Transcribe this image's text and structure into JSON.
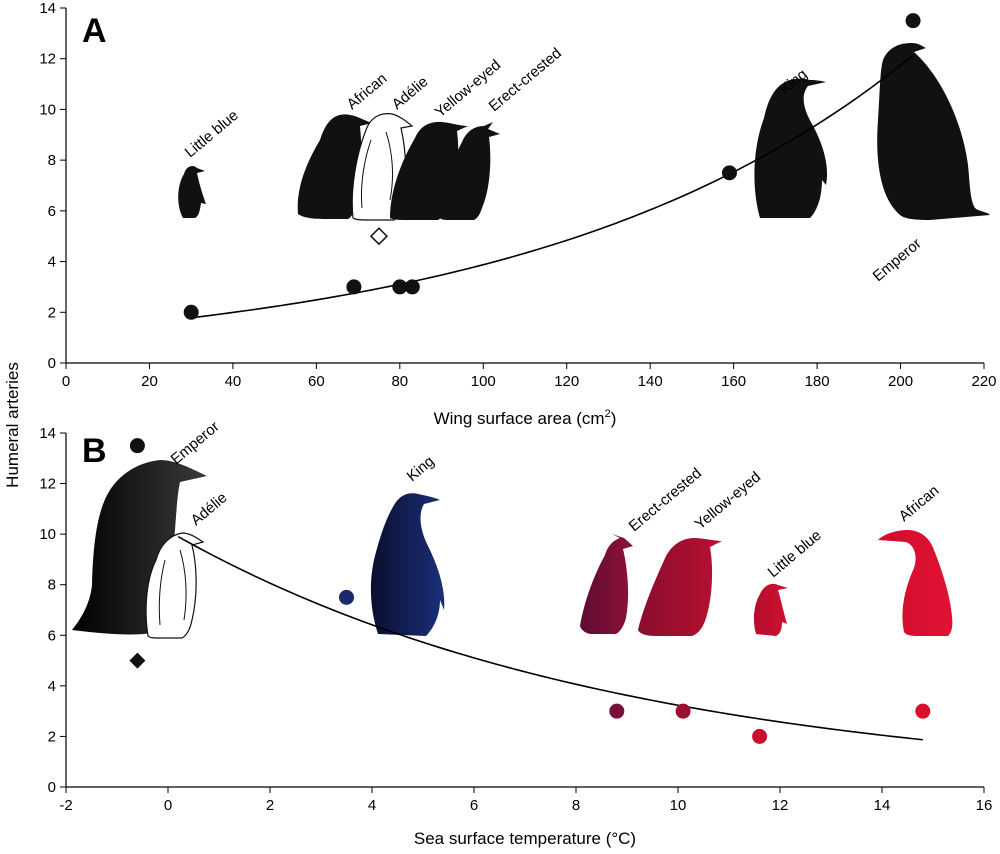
{
  "ylabel_shared": "Humeral arteries",
  "chart_data": [
    {
      "panel": "A",
      "type": "scatter",
      "xlabel": "Wing surface area (cm",
      "xlabel_sup": "2",
      "xlabel_close": ")",
      "ylabel": "Humeral arteries",
      "xlim": [
        0,
        220
      ],
      "ylim": [
        0,
        14
      ],
      "xticks": [
        0,
        20,
        40,
        60,
        80,
        100,
        120,
        140,
        160,
        180,
        200,
        220
      ],
      "yticks": [
        0,
        2,
        4,
        6,
        8,
        10,
        12,
        14
      ],
      "grid": false,
      "points": [
        {
          "species": "Little blue",
          "x": 30,
          "y": 2,
          "marker": "circle"
        },
        {
          "species": "African",
          "x": 69,
          "y": 3,
          "marker": "circle"
        },
        {
          "species": "Adélie",
          "x": 75,
          "y": 5,
          "marker": "open-diamond"
        },
        {
          "species": "Yellow-eyed",
          "x": 80,
          "y": 3,
          "marker": "circle"
        },
        {
          "species": "Erect-crested",
          "x": 83,
          "y": 3,
          "marker": "circle"
        },
        {
          "species": "King",
          "x": 159,
          "y": 7.5,
          "marker": "circle"
        },
        {
          "species": "Emperor",
          "x": 203,
          "y": 13.5,
          "marker": "circle"
        }
      ],
      "fit_curve": {
        "type": "exponential",
        "a": 1.28,
        "b": 0.01108,
        "x_range": [
          30,
          203
        ]
      },
      "species_labels": [
        "Little blue",
        "African",
        "Adélie",
        "Yellow-eyed",
        "Erect-crested",
        "King",
        "Emperor"
      ]
    },
    {
      "panel": "B",
      "type": "scatter",
      "xlabel": "Sea surface temperature (°C)",
      "ylabel": "Humeral arteries",
      "xlim": [
        -2,
        16
      ],
      "ylim": [
        0,
        14
      ],
      "xticks": [
        -2,
        0,
        2,
        4,
        6,
        8,
        10,
        12,
        14,
        16
      ],
      "yticks": [
        0,
        2,
        4,
        6,
        8,
        10,
        12,
        14
      ],
      "grid": false,
      "points": [
        {
          "species": "Emperor",
          "x": -0.6,
          "y": 13.5,
          "marker": "circle",
          "color": "#111111"
        },
        {
          "species": "Adélie",
          "x": -0.6,
          "y": 5,
          "marker": "diamond",
          "color": "#111111"
        },
        {
          "species": "King",
          "x": 3.5,
          "y": 7.5,
          "marker": "circle",
          "color": "#1a2a6c"
        },
        {
          "species": "Erect-crested",
          "x": 8.8,
          "y": 3,
          "marker": "circle",
          "color": "#7a1036"
        },
        {
          "species": "Yellow-eyed",
          "x": 10.1,
          "y": 3,
          "marker": "circle",
          "color": "#9e1030"
        },
        {
          "species": "Little blue",
          "x": 11.6,
          "y": 2,
          "marker": "circle",
          "color": "#c8102e"
        },
        {
          "species": "African",
          "x": 14.8,
          "y": 3,
          "marker": "circle",
          "color": "#d90f2c"
        }
      ],
      "fit_curve": {
        "type": "exponential",
        "a": 10.13,
        "b": -0.1142,
        "x_range": [
          0.2,
          14.8
        ]
      },
      "species_labels": [
        "Emperor",
        "Adélie",
        "King",
        "Erect-crested",
        "Yellow-eyed",
        "Little blue",
        "African"
      ]
    }
  ]
}
